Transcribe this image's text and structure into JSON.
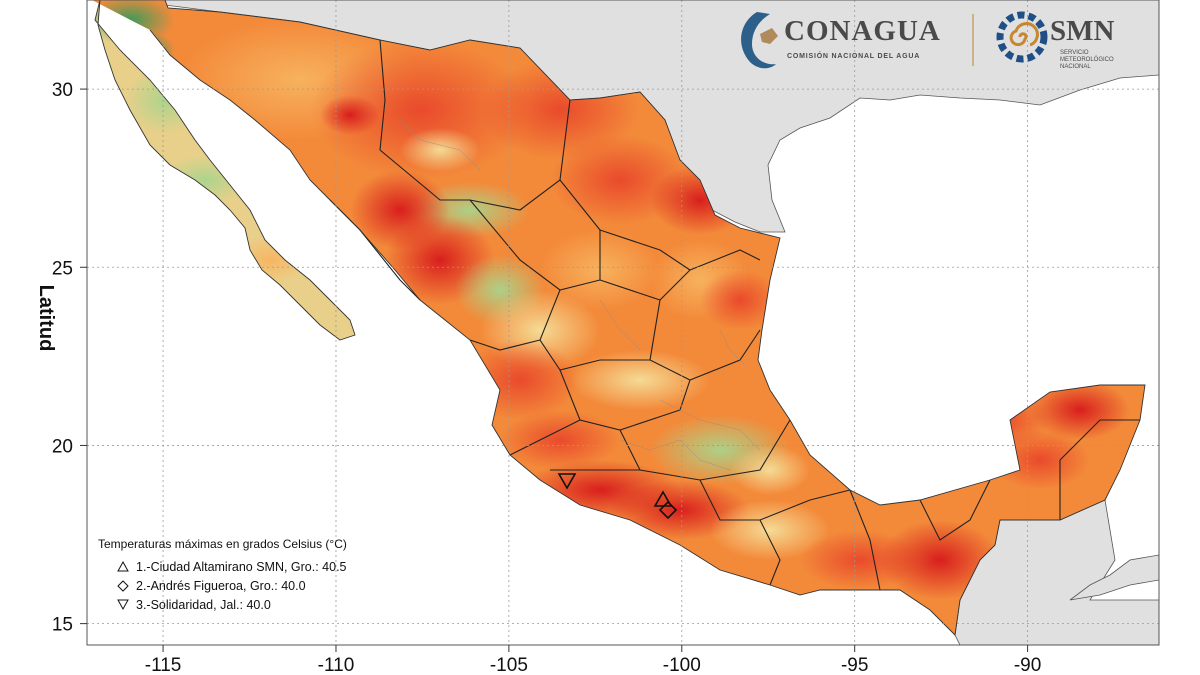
{
  "map": {
    "y_axis_label": "Latitud",
    "x_ticks": [
      "-115",
      "-110",
      "-105",
      "-100",
      "-95",
      "-90"
    ],
    "y_ticks": [
      "30",
      "25",
      "20",
      "15"
    ],
    "lon_range": [
      -117.2,
      -86.2
    ],
    "lat_range": [
      14.4,
      32.5
    ],
    "colors": {
      "hot_max": "#d7191c",
      "hot": "#ec5a2a",
      "warm": "#f38a3a",
      "mild": "#f7b460",
      "cool": "#f5df9a",
      "green_light": "#cfe6b0",
      "green": "#8cc77a",
      "green_dark": "#3f9a5a",
      "land_other": "#e0e0e0",
      "ocean": "#ffffff"
    }
  },
  "legend": {
    "title": "Temperaturas máximas en grados Celsius (°C)",
    "items": [
      {
        "symbol": "triangle-up",
        "label": "1.-Ciudad Altamirano SMN, Gro.: 40.5"
      },
      {
        "symbol": "diamond",
        "label": "2.-Andrés Figueroa, Gro.: 40.0"
      },
      {
        "symbol": "triangle-down",
        "label": "3.-Solidaridad, Jal.: 40.0"
      }
    ]
  },
  "logos": {
    "conagua": {
      "name": "CONAGUA",
      "subtitle": "COMISIÓN NACIONAL DEL AGUA"
    },
    "smn": {
      "name": "SMN",
      "subtitle_lines": [
        "SERVICIO",
        "METEOROLÓGICO",
        "NACIONAL"
      ]
    }
  }
}
